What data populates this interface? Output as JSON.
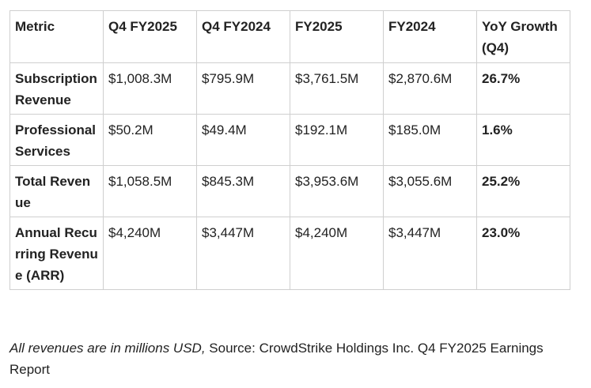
{
  "table": {
    "headers": [
      "Metric",
      "Q4 FY2025",
      "Q4 FY2024",
      "FY2025",
      "FY2024",
      "YoY Growth (Q4)"
    ],
    "rows": [
      {
        "metric": "Subscription Revenue",
        "q4_fy2025": "$1,008.3M",
        "q4_fy2024": "$795.9M",
        "fy2025": "$3,761.5M",
        "fy2024": "$2,870.6M",
        "yoy_growth": "26.7%"
      },
      {
        "metric": "Professional Services",
        "q4_fy2025": "$50.2M",
        "q4_fy2024": "$49.4M",
        "fy2025": "$192.1M",
        "fy2024": "$185.0M",
        "yoy_growth": "1.6%"
      },
      {
        "metric": "Total Revenue",
        "q4_fy2025": "$1,058.5M",
        "q4_fy2024": "$845.3M",
        "fy2025": "$3,953.6M",
        "fy2024": "$3,055.6M",
        "yoy_growth": "25.2%"
      },
      {
        "metric": "Annual Recurring Revenue (ARR)",
        "q4_fy2025": "$4,240M",
        "q4_fy2024": "$3,447M",
        "fy2025": "$4,240M",
        "fy2024": "$3,447M",
        "yoy_growth": "23.0%"
      }
    ]
  },
  "caption": {
    "note": "All revenues are in millions USD,",
    "source": " Source: CrowdStrike Holdings Inc. Q4 FY2025 Earnings Report"
  }
}
